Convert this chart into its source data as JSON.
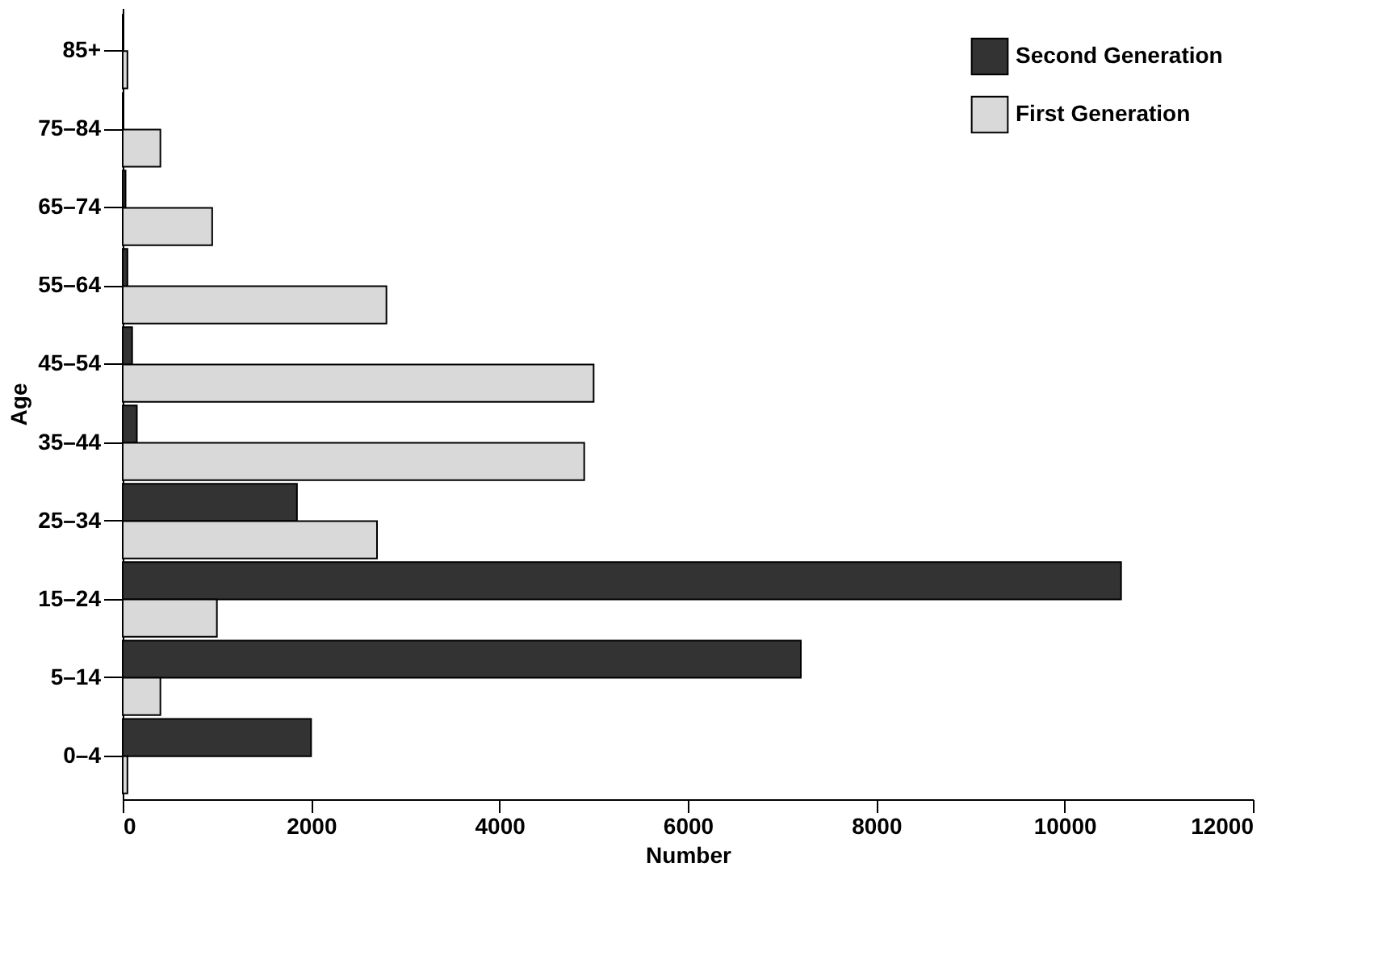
{
  "chart_data": {
    "type": "bar",
    "orientation": "horizontal",
    "xlabel": "Number",
    "ylabel": "Age",
    "categories": [
      "85+",
      "75–84",
      "65–74",
      "55–64",
      "45–54",
      "35–44",
      "25–34",
      "15–24",
      "5–14",
      "0–4"
    ],
    "series": [
      {
        "name": "Second Generation",
        "color": "#333333",
        "values": [
          0,
          0,
          30,
          50,
          100,
          150,
          1850,
          10600,
          7200,
          2000
        ]
      },
      {
        "name": "First Generation",
        "color": "#d9d9d9",
        "values": [
          50,
          400,
          950,
          2800,
          5000,
          4900,
          2700,
          1000,
          400,
          50
        ]
      }
    ],
    "xlim": [
      0,
      12000
    ],
    "xticks": [
      0,
      2000,
      4000,
      6000,
      8000,
      10000,
      12000
    ],
    "grid": false,
    "legend": "top right"
  }
}
